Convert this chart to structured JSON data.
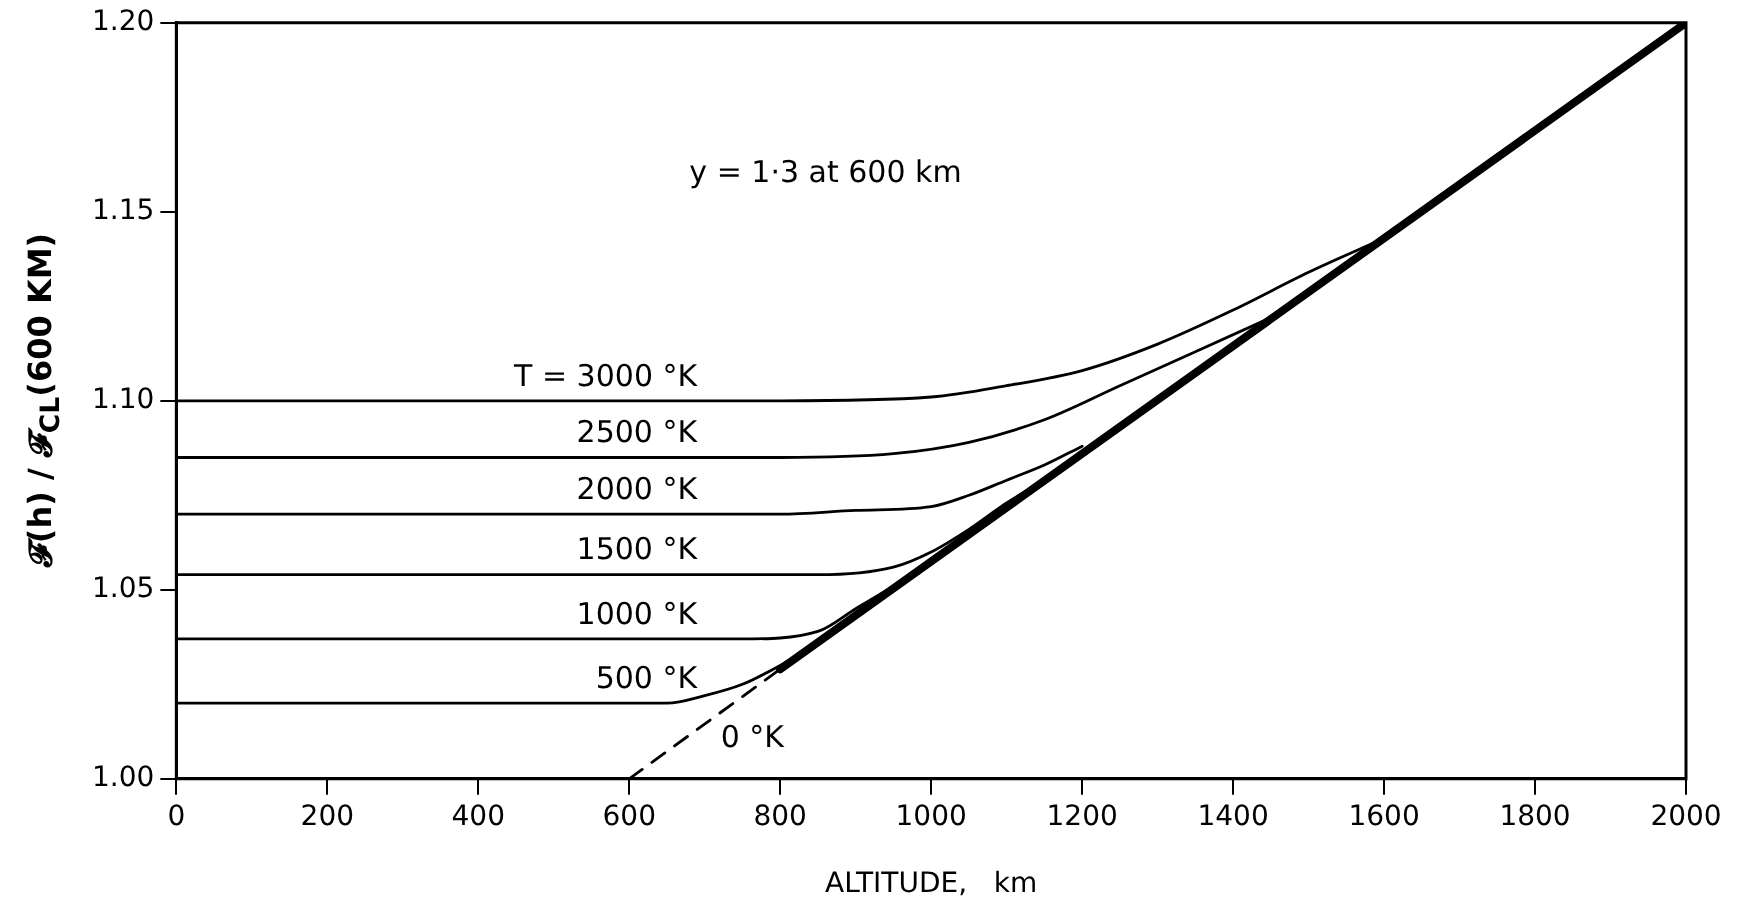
{
  "chart_data": {
    "type": "line",
    "xlabel": "ALTITUDE,   km",
    "ylabel": "𝓕(h) / 𝓕$_{CL}$(600 KM)",
    "annotations": [
      "y = 1·3 at 600 km"
    ],
    "xlim": [
      0,
      2000
    ],
    "xticks": [
      0,
      200,
      400,
      600,
      800,
      1000,
      1200,
      1400,
      1600,
      1800,
      2000
    ],
    "ylim": [
      1.0,
      1.2
    ],
    "yticks": [
      {
        "value": 1.0,
        "label": "1.00"
      },
      1.05,
      {
        "value": 1.1,
        "label": "1.10"
      },
      1.15,
      {
        "value": 1.2,
        "label": "1.20"
      }
    ],
    "grid": false,
    "legend": false,
    "marker": "none",
    "series": [
      {
        "name": "T = 3000 °K",
        "color": "#000000",
        "x": [
          0,
          400,
          800,
          1000,
          1100,
          1200,
          1300,
          1400,
          1500,
          1600
        ],
        "values": [
          1.1,
          1.1,
          1.1,
          1.101,
          1.104,
          1.108,
          1.115,
          1.124,
          1.134,
          1.143
        ]
      },
      {
        "name": "2500 °K",
        "color": "#000000",
        "x": [
          0,
          400,
          800,
          950,
          1050,
          1150,
          1250,
          1350,
          1450
        ],
        "values": [
          1.085,
          1.085,
          1.085,
          1.086,
          1.089,
          1.095,
          1.104,
          1.113,
          1.122
        ]
      },
      {
        "name": "2000 °K",
        "color": "#000000",
        "x": [
          0,
          400,
          800,
          900,
          1000,
          1050,
          1100,
          1150,
          1200
        ],
        "values": [
          1.07,
          1.07,
          1.07,
          1.071,
          1.072,
          1.075,
          1.079,
          1.083,
          1.088
        ]
      },
      {
        "name": "1500 °K",
        "color": "#000000",
        "x": [
          0,
          400,
          800,
          850,
          950,
          1000,
          1050,
          1100,
          1150
        ],
        "values": [
          1.054,
          1.054,
          1.054,
          1.054,
          1.056,
          1.06,
          1.066,
          1.073,
          1.079
        ]
      },
      {
        "name": "1000 °K",
        "color": "#000000",
        "x": [
          0,
          400,
          750,
          850,
          900,
          950,
          1000,
          1050
        ],
        "values": [
          1.037,
          1.037,
          1.037,
          1.039,
          1.045,
          1.051,
          1.058,
          1.065
        ]
      },
      {
        "name": "500 °K",
        "color": "#000000",
        "x": [
          0,
          400,
          650,
          700,
          750,
          800,
          850
        ],
        "values": [
          1.02,
          1.02,
          1.02,
          1.022,
          1.025,
          1.03,
          1.036
        ]
      },
      {
        "name": "0 °K",
        "color": "#000000",
        "line_style": "dashed",
        "x": [
          600,
          800
        ],
        "values": [
          1.0,
          1.029
        ]
      },
      {
        "color": "#000000",
        "x": [
          800,
          2000
        ],
        "values": [
          1.029,
          1.2
        ]
      }
    ]
  }
}
